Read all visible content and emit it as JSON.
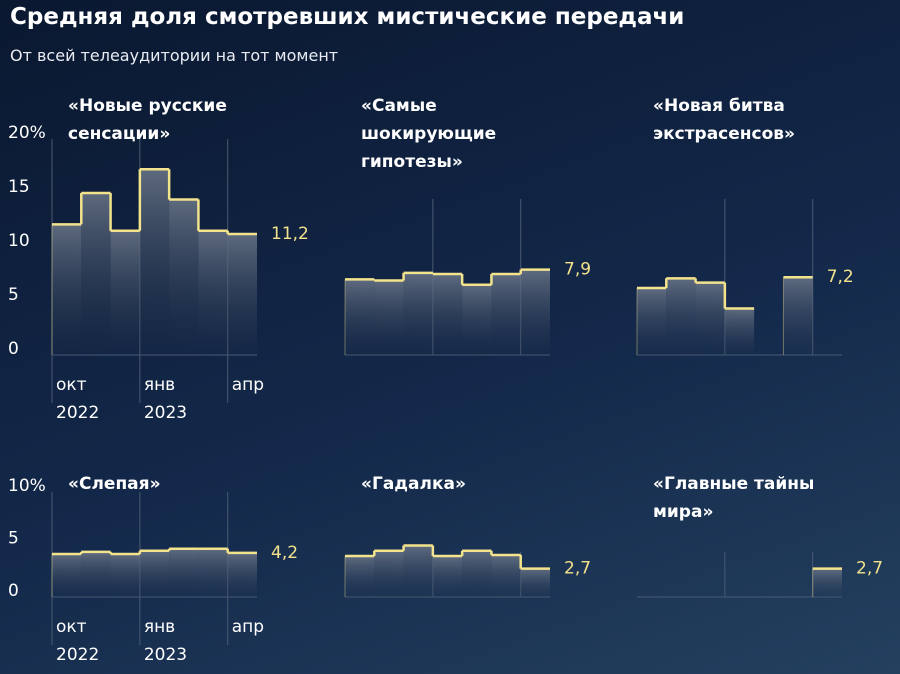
{
  "title": "Средняя доля смотревших мистические передачи",
  "subtitle": "От всей телеаудитории на тот момент",
  "chart_data": [
    {
      "type": "step",
      "title": "«Новые русские сенсации»",
      "categories": [
        "окт 2022",
        null,
        null,
        "янв 2023",
        null,
        null,
        "апр"
      ],
      "values": [
        12.1,
        15.0,
        11.5,
        17.2,
        14.4,
        11.5,
        11.2
      ],
      "value_labels": [
        null,
        null,
        null,
        null,
        null,
        null,
        "11,2"
      ],
      "ylim": [
        0,
        20
      ],
      "yticks": [
        0,
        5,
        10,
        15,
        {
          "value": 20,
          "label": "20%"
        }
      ],
      "color": "#f3e38c"
    },
    {
      "type": "step",
      "title": "«Самые шокирующие гипотезы»",
      "values": [
        7.0,
        6.9,
        7.6,
        7.5,
        6.5,
        7.5,
        7.9
      ],
      "value_labels": [
        null,
        null,
        null,
        null,
        null,
        null,
        "7,9"
      ],
      "ylim": [
        0,
        20
      ],
      "color": "#f3e38c"
    },
    {
      "type": "step",
      "title": "«Новая битва экстрасенсов»",
      "values": [
        6.2,
        7.1,
        6.7,
        4.3,
        null,
        7.2,
        null
      ],
      "value_labels": [
        null,
        null,
        null,
        null,
        null,
        "7,2",
        null
      ],
      "ylim": [
        0,
        20
      ],
      "color": "#f3e38c"
    },
    {
      "type": "step",
      "title": "«Слепая»",
      "categories": [
        "окт 2022",
        null,
        null,
        "янв 2023",
        null,
        null,
        "апр"
      ],
      "values": [
        4.1,
        4.3,
        4.1,
        4.4,
        4.6,
        4.6,
        4.2
      ],
      "value_labels": [
        null,
        null,
        null,
        null,
        null,
        null,
        "4,2"
      ],
      "ylim": [
        0,
        10
      ],
      "yticks": [
        0,
        5,
        {
          "value": 10,
          "label": "10%"
        }
      ],
      "color": "#f3e38c"
    },
    {
      "type": "step",
      "title": "«Гадалка»",
      "values": [
        3.9,
        4.4,
        4.9,
        3.9,
        4.4,
        4.0,
        2.7
      ],
      "value_labels": [
        null,
        null,
        null,
        null,
        null,
        null,
        "2,7"
      ],
      "ylim": [
        0,
        10
      ],
      "color": "#f3e38c"
    },
    {
      "type": "step",
      "title": "«Главные тайны мира»",
      "values": [
        null,
        null,
        null,
        null,
        null,
        null,
        2.7
      ],
      "value_labels": [
        null,
        null,
        null,
        null,
        null,
        null,
        "2,7"
      ],
      "ylim": [
        0,
        10
      ],
      "color": "#f3e38c"
    }
  ]
}
